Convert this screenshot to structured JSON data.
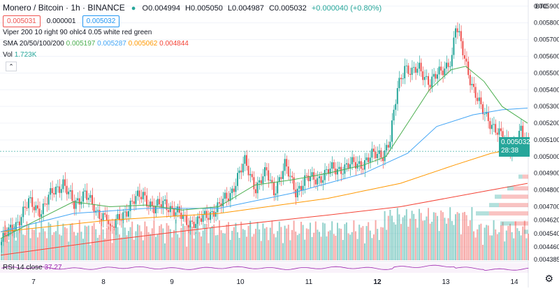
{
  "header": {
    "symbol": "Monero / Bitcoin · 1h · BINANCE",
    "ohlc": {
      "o": "O0.004994",
      "h": "H0.005050",
      "l": "L0.004987",
      "c": "C0.005032",
      "chg": "+0.000040 (+0.80%)"
    },
    "bid": "0.005031",
    "spread": "0.000001",
    "ask": "0.005032",
    "indicator1": "Viper 200 10 right 90 ohlc4 0.05 white red green",
    "sma_label": "SMA 20/50/100/200",
    "sma_values": [
      "0.005197",
      "0.005287",
      "0.005062",
      "0.004844"
    ],
    "vol_label": "Vol",
    "vol_value": "1.723K",
    "rsi_label": "RSI 14 close",
    "rsi_value": "37.27",
    "currency": "BTC",
    "last_price": "0.005032",
    "countdown": "28:38",
    "settings_icon": "gear-icon"
  },
  "colors": {
    "up": "#26a69a",
    "down": "#ef5350",
    "sma20": "#4caf50",
    "sma50": "#42a5f5",
    "sma100": "#ff9800",
    "sma200": "#f44336",
    "rsi": "#9c27b0"
  },
  "chart_data": [
    {
      "type": "candlestick",
      "x_ticks": [
        "7",
        "8",
        "9",
        "10",
        "11",
        "12",
        "13",
        "14"
      ],
      "y_ticks": [
        "0.005900",
        "0.005800",
        "0.005700",
        "0.005600",
        "0.005500",
        "0.005400",
        "0.005300",
        "0.005200",
        "0.005100",
        "0.005000",
        "0.004900",
        "0.004800",
        "0.004700",
        "0.004620",
        "0.004540",
        "0.004460",
        "0.004385"
      ],
      "ylim": [
        0.00438,
        0.00592
      ],
      "anchors": [
        [
          0,
          0.00449
        ],
        [
          8,
          0.0046
        ],
        [
          15,
          0.00472
        ],
        [
          22,
          0.00468
        ],
        [
          28,
          0.00478
        ],
        [
          34,
          0.00485
        ],
        [
          40,
          0.0047
        ],
        [
          46,
          0.0048
        ],
        [
          52,
          0.00465
        ],
        [
          58,
          0.00466
        ],
        [
          60,
          0.00455
        ],
        [
          66,
          0.00465
        ],
        [
          72,
          0.00472
        ],
        [
          78,
          0.00478
        ],
        [
          84,
          0.00468
        ],
        [
          90,
          0.00473
        ],
        [
          96,
          0.00466
        ],
        [
          102,
          0.00462
        ],
        [
          108,
          0.0046
        ],
        [
          114,
          0.00466
        ],
        [
          120,
          0.0047
        ],
        [
          126,
          0.00478
        ],
        [
          130,
          0.00488
        ],
        [
          134,
          0.00496
        ],
        [
          140,
          0.00482
        ],
        [
          146,
          0.0049
        ],
        [
          150,
          0.0048
        ],
        [
          156,
          0.00494
        ],
        [
          162,
          0.0048
        ],
        [
          168,
          0.00486
        ],
        [
          176,
          0.00488
        ],
        [
          182,
          0.00492
        ],
        [
          190,
          0.00494
        ],
        [
          198,
          0.00496
        ],
        [
          204,
          0.005
        ],
        [
          210,
          0.00502
        ],
        [
          214,
          0.0051
        ],
        [
          218,
          0.0054
        ],
        [
          222,
          0.00555
        ],
        [
          226,
          0.0055
        ],
        [
          230,
          0.00552
        ],
        [
          236,
          0.00545
        ],
        [
          242,
          0.0055
        ],
        [
          248,
          0.0056
        ],
        [
          250,
          0.00578
        ],
        [
          256,
          0.00555
        ],
        [
          260,
          0.0054
        ],
        [
          264,
          0.00528
        ],
        [
          270,
          0.0052
        ],
        [
          276,
          0.0051
        ],
        [
          281,
          0.00505
        ],
        [
          286,
          0.00515
        ],
        [
          290,
          0.00503
        ]
      ],
      "sma20_pts": [
        [
          0,
          0.00451
        ],
        [
          20,
          0.00462
        ],
        [
          40,
          0.00473
        ],
        [
          60,
          0.0047
        ],
        [
          80,
          0.00471
        ],
        [
          100,
          0.00468
        ],
        [
          120,
          0.0047
        ],
        [
          140,
          0.00483
        ],
        [
          160,
          0.00486
        ],
        [
          180,
          0.0049
        ],
        [
          200,
          0.00495
        ],
        [
          212,
          0.005
        ],
        [
          224,
          0.0052
        ],
        [
          236,
          0.0054
        ],
        [
          248,
          0.00552
        ],
        [
          256,
          0.00554
        ],
        [
          266,
          0.00545
        ],
        [
          276,
          0.0053
        ],
        [
          290,
          0.0052
        ]
      ],
      "sma50_pts": [
        [
          0,
          0.00455
        ],
        [
          40,
          0.00466
        ],
        [
          80,
          0.00469
        ],
        [
          120,
          0.00469
        ],
        [
          160,
          0.00478
        ],
        [
          200,
          0.0049
        ],
        [
          224,
          0.00502
        ],
        [
          240,
          0.00518
        ],
        [
          260,
          0.00525
        ],
        [
          276,
          0.00528
        ],
        [
          290,
          0.00529
        ]
      ],
      "sma100_pts": [
        [
          0,
          0.00455
        ],
        [
          60,
          0.00462
        ],
        [
          120,
          0.00466
        ],
        [
          180,
          0.00475
        ],
        [
          220,
          0.00484
        ],
        [
          250,
          0.00495
        ],
        [
          270,
          0.00502
        ],
        [
          290,
          0.00506
        ]
      ],
      "sma200_pts": [
        [
          0,
          0.00441
        ],
        [
          60,
          0.0045
        ],
        [
          120,
          0.00458
        ],
        [
          180,
          0.00465
        ],
        [
          220,
          0.0047
        ],
        [
          260,
          0.00478
        ],
        [
          290,
          0.00484
        ]
      ],
      "profile_rows": [
        {
          "price": 0.00488,
          "width": 14,
          "up_frac": 0.4
        },
        {
          "price": 0.00481,
          "width": 30,
          "up_frac": 0.3
        },
        {
          "price": 0.00476,
          "width": 48,
          "up_frac": 0.2
        },
        {
          "price": 0.00471,
          "width": 56,
          "up_frac": 0.25
        },
        {
          "price": 0.00466,
          "width": 75,
          "up_frac": 0.25
        },
        {
          "price": 0.0046,
          "width": 40,
          "up_frac": 0.5
        },
        {
          "price": 0.00455,
          "width": 6,
          "up_frac": 1.0
        }
      ]
    },
    {
      "type": "line",
      "name": "RSI",
      "ylim": [
        0,
        100
      ],
      "values_note": "RSI oscillates around 40-60"
    }
  ]
}
